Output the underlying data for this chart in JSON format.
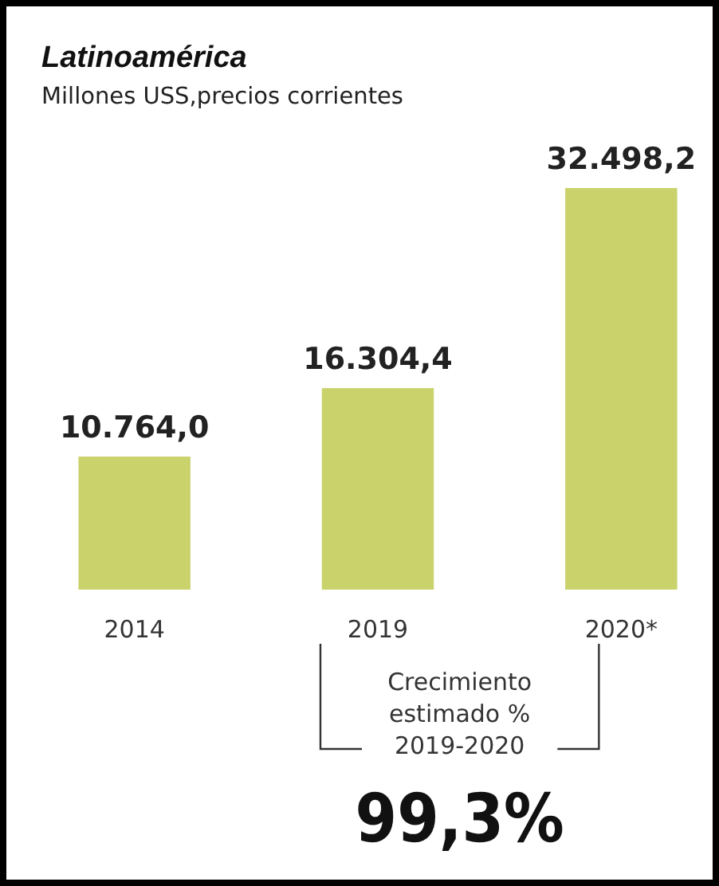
{
  "chart_data": {
    "type": "bar",
    "title": "Latinoamérica",
    "subtitle": "Millones USS,precios corrientes",
    "categories": [
      "2014",
      "2019",
      "2020*"
    ],
    "values": [
      10764.0,
      16304.4,
      32498.2
    ],
    "value_labels": [
      "10.764,0",
      "16.304,4",
      "32.498,2"
    ],
    "color": "#c9d26b",
    "annotations": [
      "Crecimiento\nestimado %\n2019-2020",
      "99,3%"
    ]
  }
}
